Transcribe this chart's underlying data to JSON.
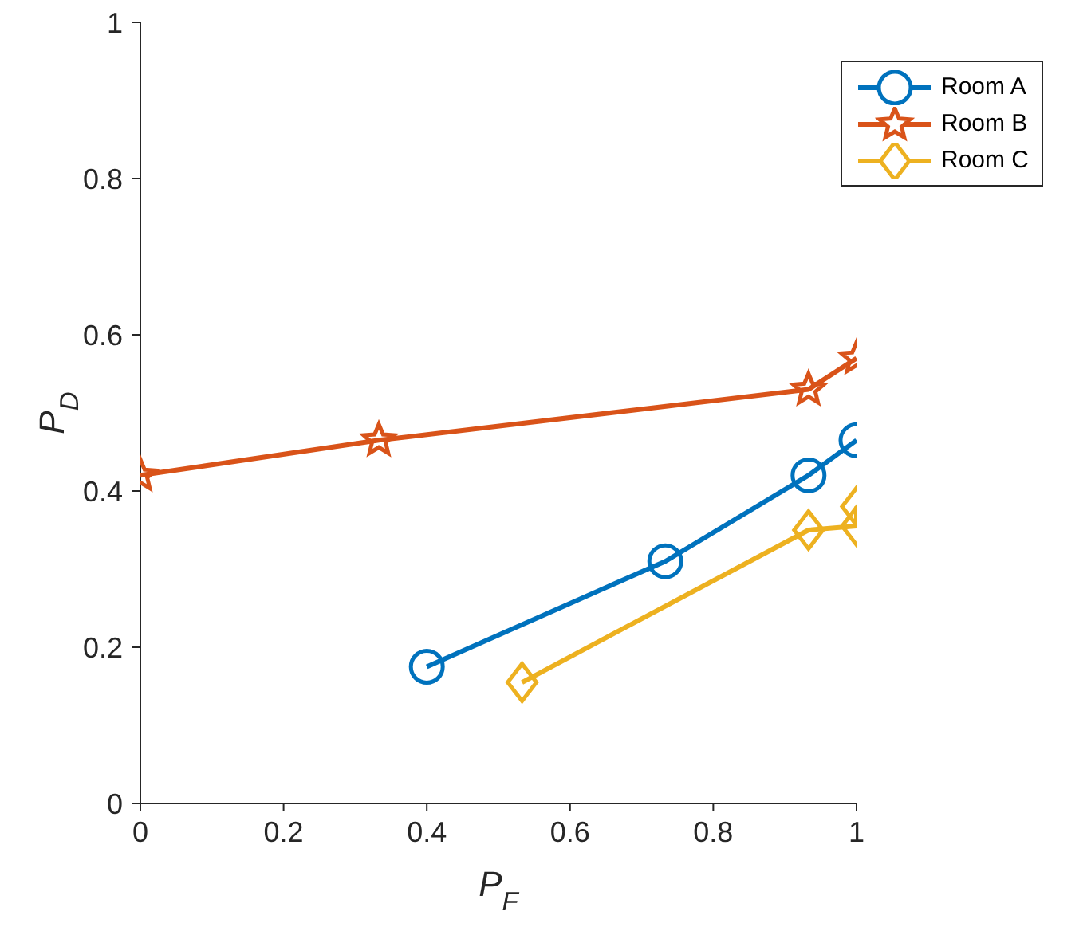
{
  "chart_data": {
    "type": "line",
    "xlabel": "P$_{F}$",
    "ylabel": "P$_{D}$",
    "xlim": [
      0,
      1
    ],
    "ylim": [
      0,
      1
    ],
    "xticks": [
      0,
      0.2,
      0.4,
      0.6,
      0.8,
      1
    ],
    "yticks": [
      0,
      0.2,
      0.4,
      0.6,
      0.8,
      1
    ],
    "grid": false,
    "legend": "top right",
    "line_style": "solid",
    "series": [
      {
        "name": "Room A",
        "color": "#0072bd",
        "marker": "circle",
        "x": [
          0.4,
          0.733,
          0.933,
          1
        ],
        "values": [
          0.175,
          0.31,
          0.42,
          0.465
        ]
      },
      {
        "name": "Room B",
        "color": "#d95319",
        "marker": "star",
        "x": [
          0,
          0.333,
          0.933,
          1
        ],
        "values": [
          0.42,
          0.465,
          0.53,
          0.57
        ]
      },
      {
        "name": "Room C",
        "color": "#edb120",
        "marker": "diamond",
        "x": [
          0.533,
          0.933,
          1,
          1
        ],
        "values": [
          0.155,
          0.35,
          0.355,
          0.38
        ]
      }
    ]
  }
}
